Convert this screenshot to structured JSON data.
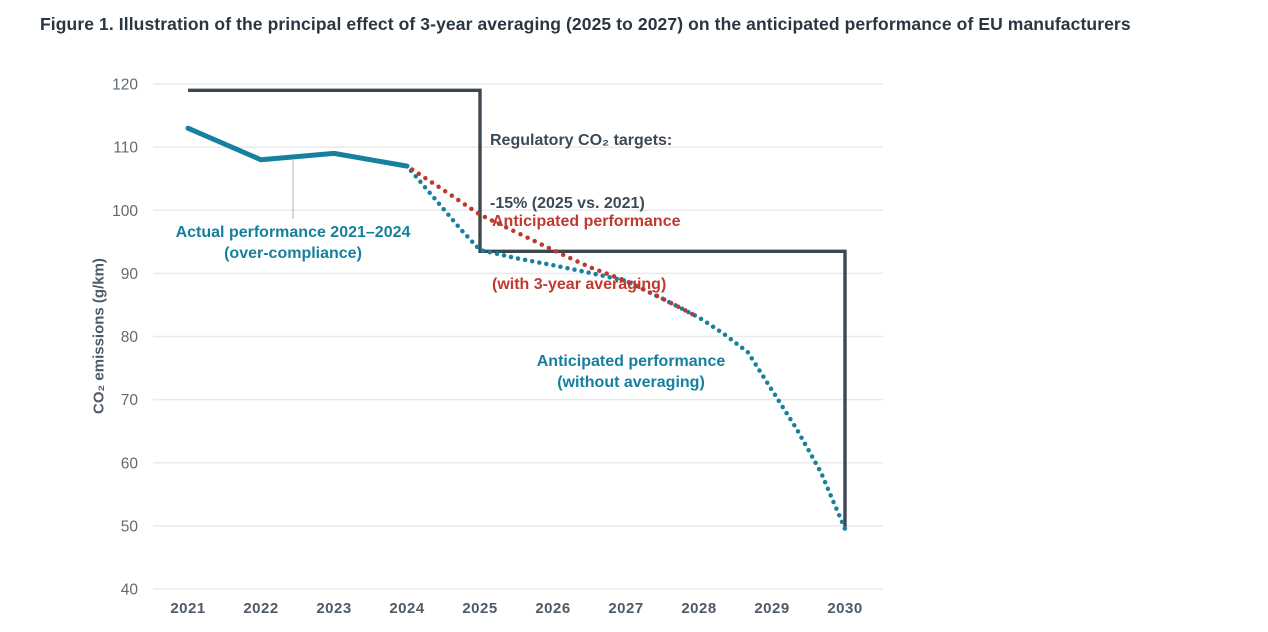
{
  "figure": {
    "title": "Figure 1. Illustration of the principal effect of 3-year averaging (2025 to 2027) on the anticipated performance of EU manufacturers"
  },
  "colors": {
    "teal": "#17809d",
    "red": "#bf382e",
    "dark_line": "#3d4751",
    "title_text": "#2a3642",
    "tick_text": "#4e5a66",
    "ytick_text": "#5f6a73",
    "gridline": "#e9eaeb",
    "leader_line": "#b9bcbd"
  },
  "chart_data": {
    "type": "line",
    "title": "Figure 1. Illustration of the principal effect of 3-year averaging (2025 to 2027) on the anticipated performance of EU manufacturers",
    "xlabel": "",
    "ylabel": "CO₂ emissions (g/km)",
    "xlim": [
      2021,
      2030
    ],
    "ylim": [
      40,
      120
    ],
    "grid": "horizontal",
    "legend_position": "none (inline annotations)",
    "xticks": [
      2021,
      2022,
      2023,
      2024,
      2025,
      2026,
      2027,
      2028,
      2029,
      2030
    ],
    "yticks": [
      40,
      50,
      60,
      70,
      80,
      90,
      100,
      110,
      120
    ],
    "series": [
      {
        "key": "regulatory_targets",
        "name": "Regulatory CO₂ targets: -15% (2025 vs. 2021)",
        "style": "step-solid",
        "color": "#3d4751",
        "x": [
          2021,
          2025,
          2025,
          2030,
          2030
        ],
        "y": [
          119,
          119,
          93.5,
          93.5,
          49.5
        ]
      },
      {
        "key": "actual_performance",
        "name": "Actual performance 2021–2024 (over-compliance)",
        "style": "solid",
        "color": "#17809d",
        "x": [
          2021,
          2022,
          2023,
          2024
        ],
        "y": [
          113,
          108,
          109,
          107
        ]
      },
      {
        "key": "without_averaging",
        "name": "Anticipated performance (without averaging)",
        "style": "dotted",
        "color": "#17809d",
        "x": [
          2024,
          2024.25,
          2024.5,
          2024.75,
          2025,
          2025.5,
          2026,
          2026.5,
          2027,
          2027.5,
          2028,
          2028.33,
          2028.67,
          2029,
          2029.33,
          2029.67,
          2030
        ],
        "y": [
          107,
          103.6,
          100.2,
          96.8,
          93.7,
          92.4,
          91.3,
          90.1,
          88.8,
          86,
          83,
          80.5,
          77.5,
          71.5,
          65.5,
          58.5,
          49.5
        ]
      },
      {
        "key": "with_averaging",
        "name": "Anticipated performance (with 3-year averaging)",
        "style": "dotted",
        "color": "#bf382e",
        "x": [
          2024,
          2024.5,
          2025,
          2025.5,
          2026,
          2026.5,
          2027,
          2027.5,
          2028
        ],
        "y": [
          107,
          103.2,
          99.3,
          96.5,
          93.7,
          91,
          88.8,
          86,
          83
        ]
      }
    ],
    "annotations": [
      {
        "key": "regulatory",
        "line1": "Regulatory CO₂ targets:",
        "line2": "-15% (2025 vs. 2021)",
        "color": "#3e4a55"
      },
      {
        "key": "with_averaging",
        "line1": "Anticipated performance",
        "line2": "(with 3-year averaging)",
        "color": "#bf382e"
      },
      {
        "key": "actual",
        "line1": "Actual performance 2021–2024",
        "line2": "(over-compliance)",
        "color": "#157f9e"
      },
      {
        "key": "without_averaging",
        "line1": "Anticipated performance",
        "line2": "(without averaging)",
        "color": "#157f9e"
      }
    ]
  }
}
